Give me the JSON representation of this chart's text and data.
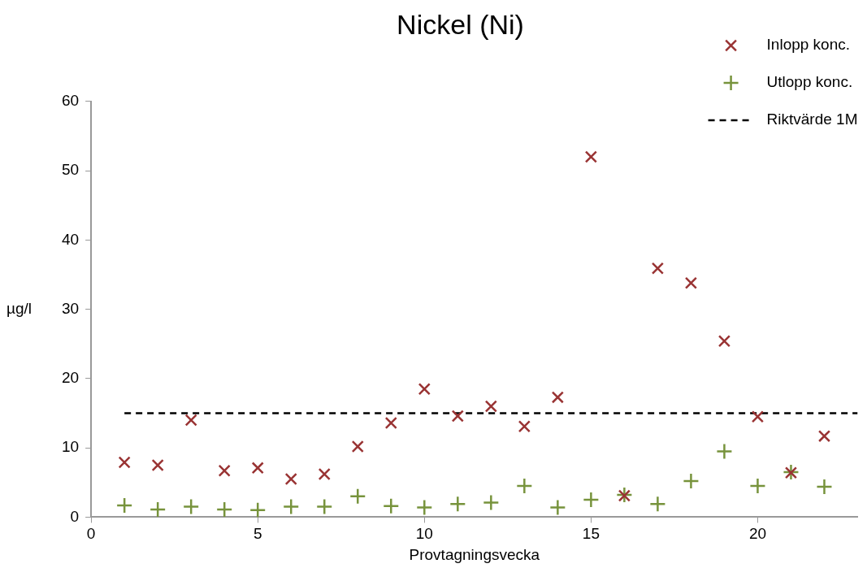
{
  "chart_data": {
    "type": "scatter",
    "title": "Nickel (Ni)",
    "xlabel": "Provtagningsvecka",
    "ylabel": "µg/l",
    "x": [
      1,
      2,
      3,
      4,
      5,
      6,
      7,
      8,
      9,
      10,
      11,
      12,
      13,
      14,
      15,
      16,
      17,
      18,
      19,
      20,
      21,
      22
    ],
    "series": [
      {
        "name": "Inlopp konc.",
        "color": "#993333",
        "marker": "cross",
        "values": [
          7.9,
          7.5,
          14.0,
          6.7,
          7.1,
          5.5,
          6.2,
          10.2,
          13.6,
          18.5,
          14.6,
          16.0,
          13.1,
          17.3,
          52.0,
          3.1,
          35.9,
          33.8,
          25.4,
          14.5,
          6.4,
          11.7
        ]
      },
      {
        "name": "Utlopp konc.",
        "color": "#77933c",
        "marker": "plus",
        "values": [
          1.7,
          1.1,
          1.5,
          1.1,
          1.0,
          1.5,
          1.5,
          3.0,
          1.6,
          1.4,
          1.9,
          2.1,
          4.5,
          1.4,
          2.5,
          3.2,
          1.9,
          5.2,
          9.5,
          4.5,
          6.5,
          4.4
        ]
      },
      {
        "name": "Riktvärde 1M",
        "type": "line",
        "color": "#000000",
        "marker": "none",
        "line_style": "dashed",
        "x": [
          1,
          23
        ],
        "values": [
          15,
          15
        ]
      }
    ],
    "xlim": [
      0,
      23
    ],
    "xticks": [
      0,
      5,
      10,
      15,
      20
    ],
    "ylim": [
      0,
      60
    ],
    "yticks": [
      0,
      10,
      20,
      30,
      40,
      50,
      60
    ],
    "grid": false,
    "legend": "top right"
  }
}
